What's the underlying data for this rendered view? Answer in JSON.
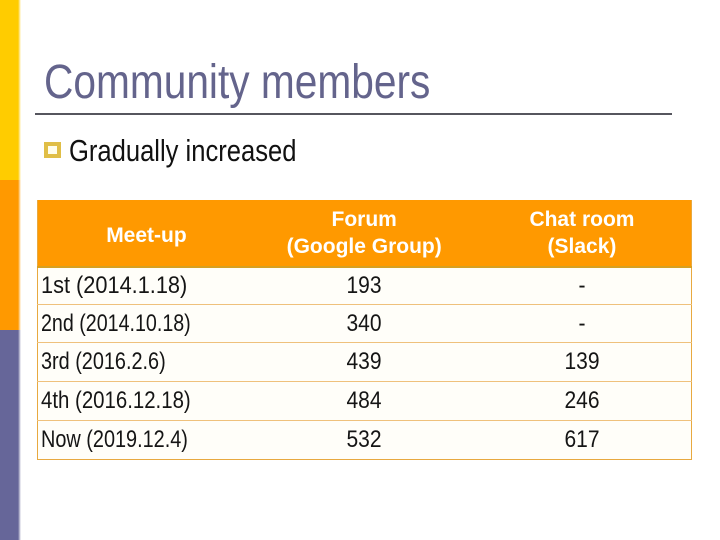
{
  "slide": {
    "title": "Community members",
    "bullet": "Gradually increased"
  },
  "table": {
    "columns": [
      {
        "label": "Meet-up",
        "sublabel": ""
      },
      {
        "label": "Forum",
        "sublabel": "(Google Group)"
      },
      {
        "label": "Chat room",
        "sublabel": "(Slack)"
      }
    ],
    "rows": [
      [
        "1st (2014.1.18)",
        "193",
        "-"
      ],
      [
        "2nd (2014.10.18)",
        "340",
        "-"
      ],
      [
        "3rd (2016.2.6)",
        "439",
        "139"
      ],
      [
        "4th (2016.12.18)",
        "484",
        "246"
      ],
      [
        "Now (2019.12.4)",
        "532",
        "617"
      ]
    ]
  },
  "colors": {
    "bar_yellow": "#FFCC00",
    "bar_orange": "#FF9900",
    "bar_purple": "#666699",
    "title_text": "#64648C",
    "title_rule": "#56565E",
    "bullet_square": "#E0BE46",
    "bullet_fill": "#FFFDEB",
    "header_bg": "#FF9900",
    "header_text": "#FFFFFF",
    "header_bottom_border": "#D7A021",
    "table_outer_border": "#E8A940",
    "row_separator": "#EFC17C",
    "body_bg": "#FFFEF9",
    "body_text": "#151515"
  }
}
